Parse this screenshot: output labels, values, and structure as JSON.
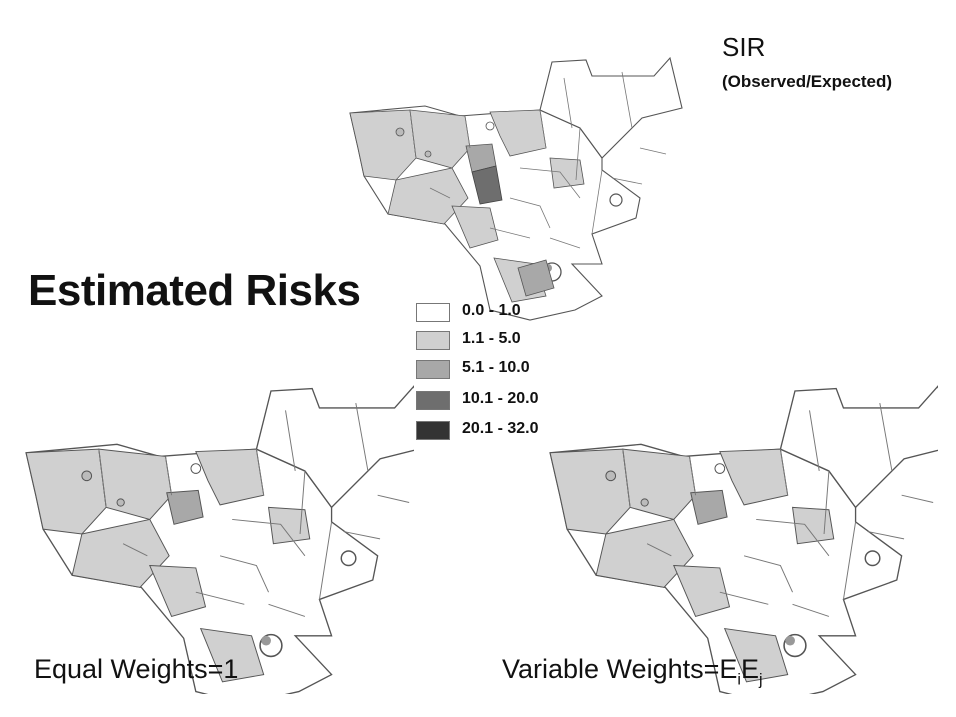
{
  "title": "Estimated Risks",
  "sir_map": {
    "title": "SIR",
    "subtitle": "(Observed/Expected)"
  },
  "legend": {
    "items": [
      {
        "label": "0.0 - 1.0",
        "color": "#ffffff"
      },
      {
        "label": "1.1 - 5.0",
        "color": "#d0d0d0"
      },
      {
        "label": "5.1 - 10.0",
        "color": "#a8a8a8"
      },
      {
        "label": "10.1 - 20.0",
        "color": "#6e6e6e"
      },
      {
        "label": "20.1 - 32.0",
        "color": "#333333"
      }
    ]
  },
  "equal_map": {
    "caption": "Equal Weights=1"
  },
  "variable_map": {
    "caption_prefix": "Variable Weights=E",
    "sub1": "i",
    "mid": "E",
    "sub2": "j"
  }
}
